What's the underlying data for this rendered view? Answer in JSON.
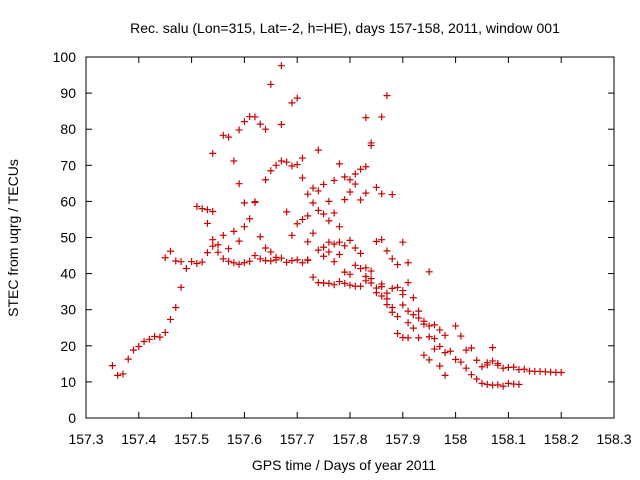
{
  "chart_data": {
    "type": "scatter",
    "title": "Rec. salu (Lon=315, Lat=-2, h=HE), days 157-158, 2011, window 001",
    "xlabel": "GPS time / Days of year 2011",
    "ylabel": "STEC from uqrg / TECUs",
    "xlim": [
      157.3,
      158.3
    ],
    "ylim": [
      0,
      100
    ],
    "x_ticks": [
      157.3,
      157.4,
      157.5,
      157.6,
      157.7,
      157.8,
      157.9,
      158,
      158.1,
      158.2,
      158.3
    ],
    "x_tick_labels": [
      "157.3",
      "157.4",
      "157.5",
      "157.6",
      "157.7",
      "157.8",
      "157.9",
      "158",
      "158.1",
      "158.2",
      "158.3"
    ],
    "y_ticks": [
      0,
      10,
      20,
      30,
      40,
      50,
      60,
      70,
      80,
      90,
      100
    ],
    "y_tick_labels": [
      "0",
      "10",
      "20",
      "30",
      "40",
      "50",
      "60",
      "70",
      "80",
      "90",
      "100"
    ],
    "grid": false,
    "marker": "+",
    "color": "#cc0000",
    "points": [
      [
        157.35,
        14.5
      ],
      [
        157.36,
        11.8
      ],
      [
        157.37,
        12.2
      ],
      [
        157.38,
        16.3
      ],
      [
        157.39,
        18.8
      ],
      [
        157.4,
        19.8
      ],
      [
        157.41,
        21.2
      ],
      [
        157.42,
        21.8
      ],
      [
        157.43,
        22.6
      ],
      [
        157.44,
        22.4
      ],
      [
        157.45,
        23.7
      ],
      [
        157.46,
        27.3
      ],
      [
        157.47,
        30.6
      ],
      [
        157.48,
        36.2
      ],
      [
        157.49,
        41.4
      ],
      [
        157.45,
        44.4
      ],
      [
        157.46,
        46.2
      ],
      [
        157.47,
        43.5
      ],
      [
        157.48,
        43.3
      ],
      [
        157.5,
        43.3
      ],
      [
        157.51,
        42.8
      ],
      [
        157.52,
        43.2
      ],
      [
        157.53,
        45.8
      ],
      [
        157.54,
        47.6
      ],
      [
        157.55,
        45.9
      ],
      [
        157.56,
        44.1
      ],
      [
        157.57,
        43.4
      ],
      [
        157.58,
        43.0
      ],
      [
        157.59,
        42.6
      ],
      [
        157.6,
        43.0
      ],
      [
        157.61,
        43.4
      ],
      [
        157.62,
        45.0
      ],
      [
        157.63,
        44.1
      ],
      [
        157.64,
        43.6
      ],
      [
        157.65,
        43.5
      ],
      [
        157.66,
        43.8
      ],
      [
        157.67,
        44.3
      ],
      [
        157.68,
        43.1
      ],
      [
        157.69,
        43.6
      ],
      [
        157.7,
        43.8
      ],
      [
        157.71,
        43.0
      ],
      [
        157.72,
        43.8
      ],
      [
        157.51,
        58.6
      ],
      [
        157.52,
        58.0
      ],
      [
        157.53,
        57.7
      ],
      [
        157.54,
        57.2
      ],
      [
        157.53,
        53.9
      ],
      [
        157.54,
        49.4
      ],
      [
        157.55,
        48.0
      ],
      [
        157.56,
        50.6
      ],
      [
        157.57,
        46.9
      ],
      [
        157.58,
        51.7
      ],
      [
        157.59,
        49.0
      ],
      [
        157.6,
        53.0
      ],
      [
        157.61,
        55.2
      ],
      [
        157.62,
        59.7
      ],
      [
        157.63,
        50.2
      ],
      [
        157.64,
        47.1
      ],
      [
        157.65,
        46.0
      ],
      [
        157.66,
        44.5
      ],
      [
        157.54,
        73.3
      ],
      [
        157.56,
        78.3
      ],
      [
        157.57,
        77.8
      ],
      [
        157.58,
        71.2
      ],
      [
        157.59,
        79.8
      ],
      [
        157.6,
        82.1
      ],
      [
        157.61,
        83.5
      ],
      [
        157.62,
        83.4
      ],
      [
        157.63,
        81.4
      ],
      [
        157.64,
        80.0
      ],
      [
        157.59,
        64.9
      ],
      [
        157.6,
        59.6
      ],
      [
        157.62,
        59.9
      ],
      [
        157.64,
        66.0
      ],
      [
        157.65,
        68.5
      ],
      [
        157.66,
        70.0
      ],
      [
        157.67,
        71.2
      ],
      [
        157.68,
        70.9
      ],
      [
        157.69,
        69.8
      ],
      [
        157.7,
        70.2
      ],
      [
        157.71,
        72.0
      ],
      [
        157.65,
        92.4
      ],
      [
        157.67,
        97.6
      ],
      [
        157.69,
        87.3
      ],
      [
        157.7,
        88.6
      ],
      [
        157.67,
        81.3
      ],
      [
        157.68,
        57.1
      ],
      [
        157.69,
        50.6
      ],
      [
        157.7,
        53.8
      ],
      [
        157.71,
        55.0
      ],
      [
        157.72,
        56.0
      ],
      [
        157.73,
        63.7
      ],
      [
        157.74,
        62.9
      ],
      [
        157.74,
        74.2
      ],
      [
        157.75,
        64.7
      ],
      [
        157.76,
        60.0
      ],
      [
        157.77,
        65.8
      ],
      [
        157.78,
        70.4
      ],
      [
        157.79,
        66.8
      ],
      [
        157.8,
        66.0
      ],
      [
        157.81,
        67.6
      ],
      [
        157.82,
        68.9
      ],
      [
        157.83,
        69.6
      ],
      [
        157.71,
        66.5
      ],
      [
        157.72,
        62.0
      ],
      [
        157.73,
        59.6
      ],
      [
        157.74,
        57.5
      ],
      [
        157.75,
        56.5
      ],
      [
        157.76,
        54.6
      ],
      [
        157.77,
        56.8
      ],
      [
        157.78,
        53.0
      ],
      [
        157.79,
        60.5
      ],
      [
        157.8,
        62.6
      ],
      [
        157.81,
        64.8
      ],
      [
        157.82,
        60.4
      ],
      [
        157.83,
        62.3
      ],
      [
        157.84,
        76.2
      ],
      [
        157.85,
        63.9
      ],
      [
        157.86,
        62.1
      ],
      [
        157.84,
        75.5
      ],
      [
        157.83,
        83.2
      ],
      [
        157.86,
        83.4
      ],
      [
        157.87,
        89.3
      ],
      [
        157.88,
        61.9
      ],
      [
        157.72,
        48.8
      ],
      [
        157.73,
        51.2
      ],
      [
        157.74,
        46.5
      ],
      [
        157.75,
        47.3
      ],
      [
        157.76,
        48.7
      ],
      [
        157.77,
        48.2
      ],
      [
        157.78,
        48.7
      ],
      [
        157.79,
        47.7
      ],
      [
        157.8,
        49.2
      ],
      [
        157.81,
        47.1
      ],
      [
        157.82,
        45.6
      ],
      [
        157.83,
        41.6
      ],
      [
        157.84,
        40.7
      ],
      [
        157.85,
        48.9
      ],
      [
        157.86,
        49.4
      ],
      [
        157.87,
        46.3
      ],
      [
        157.88,
        44.1
      ],
      [
        157.89,
        42.5
      ],
      [
        157.9,
        48.7
      ],
      [
        157.91,
        43.0
      ],
      [
        157.72,
        43.7
      ],
      [
        157.73,
        39.0
      ],
      [
        157.74,
        37.5
      ],
      [
        157.75,
        37.4
      ],
      [
        157.76,
        37.3
      ],
      [
        157.77,
        36.9
      ],
      [
        157.78,
        37.8
      ],
      [
        157.79,
        37.3
      ],
      [
        157.8,
        36.8
      ],
      [
        157.81,
        36.5
      ],
      [
        157.82,
        36.5
      ],
      [
        157.83,
        38.0
      ],
      [
        157.84,
        37.4
      ],
      [
        157.85,
        36.0
      ],
      [
        157.86,
        36.4
      ],
      [
        157.87,
        34.6
      ],
      [
        157.88,
        35.9
      ],
      [
        157.89,
        36.2
      ],
      [
        157.9,
        35.3
      ],
      [
        157.91,
        37.5
      ],
      [
        157.75,
        44.8
      ],
      [
        157.76,
        46.0
      ],
      [
        157.77,
        43.3
      ],
      [
        157.78,
        45.3
      ],
      [
        157.79,
        40.4
      ],
      [
        157.8,
        39.8
      ],
      [
        157.81,
        42.3
      ],
      [
        157.82,
        41.4
      ],
      [
        157.83,
        39.2
      ],
      [
        157.84,
        38.6
      ],
      [
        157.85,
        34.7
      ],
      [
        157.86,
        33.8
      ],
      [
        157.87,
        31.4
      ],
      [
        157.88,
        30.6
      ],
      [
        157.89,
        28.1
      ],
      [
        157.9,
        34.2
      ],
      [
        157.91,
        26.4
      ],
      [
        157.92,
        33.3
      ],
      [
        157.93,
        27.7
      ],
      [
        157.94,
        26.8
      ],
      [
        157.95,
        22.5
      ],
      [
        157.86,
        37.1
      ],
      [
        157.87,
        33.0
      ],
      [
        157.88,
        29.3
      ],
      [
        157.89,
        23.4
      ],
      [
        157.9,
        22.3
      ],
      [
        157.91,
        22.2
      ],
      [
        157.92,
        24.9
      ],
      [
        157.93,
        22.2
      ],
      [
        157.94,
        17.4
      ],
      [
        157.95,
        16.1
      ],
      [
        157.96,
        19.1
      ],
      [
        157.97,
        19.8
      ],
      [
        157.98,
        18.1
      ],
      [
        157.9,
        31.3
      ],
      [
        157.91,
        29.6
      ],
      [
        157.92,
        28.6
      ],
      [
        157.93,
        29.6
      ],
      [
        157.94,
        26.0
      ],
      [
        157.95,
        25.5
      ],
      [
        157.96,
        25.8
      ],
      [
        157.97,
        24.4
      ],
      [
        157.98,
        22.9
      ],
      [
        157.99,
        18.5
      ],
      [
        157.95,
        40.5
      ],
      [
        157.96,
        22.0
      ],
      [
        157.97,
        14.4
      ],
      [
        157.98,
        11.8
      ],
      [
        158.0,
        16.2
      ],
      [
        158.01,
        15.5
      ],
      [
        158.02,
        18.8
      ],
      [
        158.03,
        19.4
      ],
      [
        158.04,
        16.0
      ],
      [
        158.05,
        14.2
      ],
      [
        158.06,
        14.7
      ],
      [
        158.07,
        15.8
      ],
      [
        158.08,
        15.1
      ],
      [
        158.0,
        25.5
      ],
      [
        158.01,
        22.7
      ],
      [
        158.02,
        13.8
      ],
      [
        158.03,
        12.0
      ],
      [
        158.04,
        10.8
      ],
      [
        158.05,
        9.6
      ],
      [
        158.06,
        9.3
      ],
      [
        158.07,
        9.1
      ],
      [
        158.08,
        9.2
      ],
      [
        158.09,
        8.8
      ],
      [
        158.1,
        9.6
      ],
      [
        158.11,
        9.4
      ],
      [
        158.12,
        9.3
      ],
      [
        158.06,
        15.3
      ],
      [
        158.07,
        19.5
      ],
      [
        158.08,
        14.6
      ],
      [
        158.09,
        13.8
      ],
      [
        158.1,
        14.0
      ],
      [
        158.11,
        14.1
      ],
      [
        158.12,
        13.4
      ],
      [
        158.13,
        13.5
      ],
      [
        158.14,
        13.0
      ],
      [
        158.15,
        12.9
      ],
      [
        158.16,
        12.9
      ],
      [
        158.17,
        12.8
      ],
      [
        158.18,
        12.7
      ],
      [
        158.19,
        12.6
      ],
      [
        158.2,
        12.6
      ]
    ]
  }
}
